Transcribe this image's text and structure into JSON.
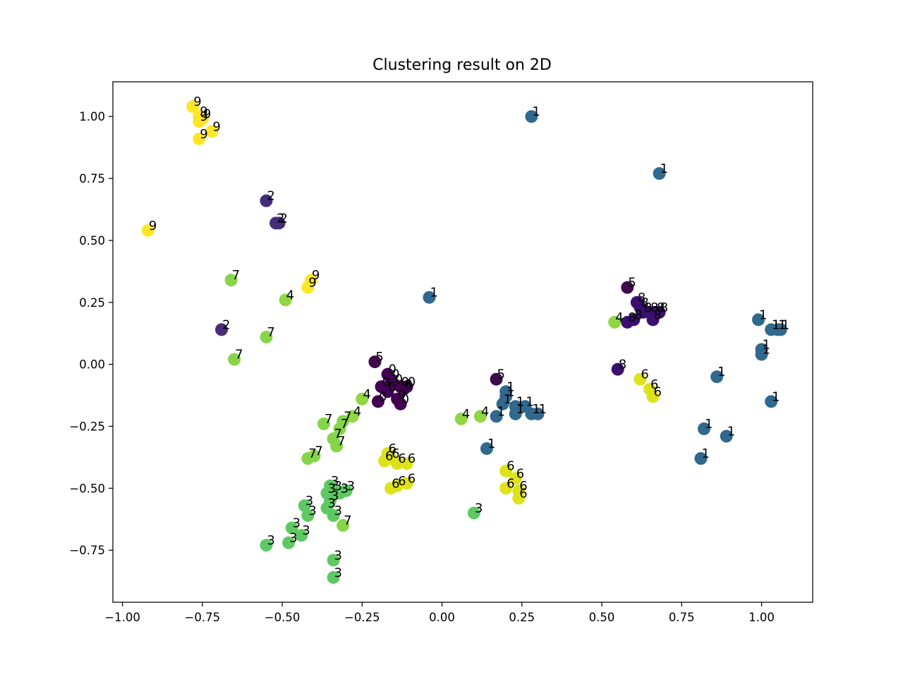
{
  "chart_data": {
    "type": "scatter",
    "title": "Clustering result on 2D",
    "xlabel": "",
    "ylabel": "",
    "xlim": [
      -1.03,
      1.16
    ],
    "ylim": [
      -0.96,
      1.14
    ],
    "grid": false,
    "legend": "none",
    "xticks": [
      {
        "value": -1.0,
        "label": "−1.00"
      },
      {
        "value": -0.75,
        "label": "−0.75"
      },
      {
        "value": -0.5,
        "label": "−0.50"
      },
      {
        "value": -0.25,
        "label": "−0.25"
      },
      {
        "value": 0.0,
        "label": "0.00"
      },
      {
        "value": 0.25,
        "label": "0.25"
      },
      {
        "value": 0.5,
        "label": "0.50"
      },
      {
        "value": 0.75,
        "label": "0.75"
      },
      {
        "value": 1.0,
        "label": "1.00"
      }
    ],
    "yticks": [
      {
        "value": 1.0,
        "label": "1.00"
      },
      {
        "value": 0.75,
        "label": "0.75"
      },
      {
        "value": 0.5,
        "label": "0.50"
      },
      {
        "value": 0.25,
        "label": "0.25"
      },
      {
        "value": 0.0,
        "label": "0.00"
      },
      {
        "value": -0.25,
        "label": "−0.25"
      },
      {
        "value": -0.5,
        "label": "−0.50"
      },
      {
        "value": -0.75,
        "label": "−0.75"
      }
    ],
    "cluster_colors": {
      "0": "#440154",
      "1": "#31688e",
      "2": "#472c7a",
      "3": "#5ec962",
      "4": "#90d743",
      "5": "#3e0b4d",
      "6": "#dde318",
      "7": "#86d549",
      "8": "#3b0f6f",
      "9": "#fde725"
    },
    "points": [
      {
        "x": -0.78,
        "y": 1.04,
        "label": "9"
      },
      {
        "x": -0.76,
        "y": 1.0,
        "label": "9"
      },
      {
        "x": -0.75,
        "y": 0.99,
        "label": "9"
      },
      {
        "x": -0.72,
        "y": 0.94,
        "label": "9"
      },
      {
        "x": -0.76,
        "y": 0.98,
        "label": "9"
      },
      {
        "x": -0.76,
        "y": 0.91,
        "label": "9"
      },
      {
        "x": -0.92,
        "y": 0.54,
        "label": "9"
      },
      {
        "x": -0.41,
        "y": 0.34,
        "label": "9"
      },
      {
        "x": -0.42,
        "y": 0.31,
        "label": "9"
      },
      {
        "x": 0.28,
        "y": 1.0,
        "label": "1"
      },
      {
        "x": 0.68,
        "y": 0.77,
        "label": "1"
      },
      {
        "x": -0.04,
        "y": 0.27,
        "label": "1"
      },
      {
        "x": -0.55,
        "y": 0.66,
        "label": "2"
      },
      {
        "x": -0.52,
        "y": 0.57,
        "label": "2"
      },
      {
        "x": -0.51,
        "y": 0.57,
        "label": "2"
      },
      {
        "x": -0.69,
        "y": 0.14,
        "label": "2"
      },
      {
        "x": -0.66,
        "y": 0.34,
        "label": "7"
      },
      {
        "x": -0.55,
        "y": 0.11,
        "label": "7"
      },
      {
        "x": -0.65,
        "y": 0.02,
        "label": "7"
      },
      {
        "x": -0.49,
        "y": 0.26,
        "label": "4"
      },
      {
        "x": 0.58,
        "y": 0.31,
        "label": "5"
      },
      {
        "x": 0.61,
        "y": 0.25,
        "label": "8"
      },
      {
        "x": 0.62,
        "y": 0.23,
        "label": "8"
      },
      {
        "x": 0.63,
        "y": 0.21,
        "label": "8"
      },
      {
        "x": 0.65,
        "y": 0.21,
        "label": "8"
      },
      {
        "x": 0.67,
        "y": 0.21,
        "label": "8"
      },
      {
        "x": 0.68,
        "y": 0.21,
        "label": "8"
      },
      {
        "x": 0.6,
        "y": 0.18,
        "label": "8"
      },
      {
        "x": 0.58,
        "y": 0.17,
        "label": "8"
      },
      {
        "x": 0.66,
        "y": 0.18,
        "label": "8"
      },
      {
        "x": 0.54,
        "y": 0.17,
        "label": "4"
      },
      {
        "x": 0.55,
        "y": -0.02,
        "label": "8"
      },
      {
        "x": 0.62,
        "y": -0.06,
        "label": "6"
      },
      {
        "x": 0.65,
        "y": -0.1,
        "label": "6"
      },
      {
        "x": 0.66,
        "y": -0.13,
        "label": "6"
      },
      {
        "x": 0.99,
        "y": 0.18,
        "label": "1"
      },
      {
        "x": 1.03,
        "y": 0.14,
        "label": "1"
      },
      {
        "x": 1.05,
        "y": 0.14,
        "label": "1"
      },
      {
        "x": 1.06,
        "y": 0.14,
        "label": "1"
      },
      {
        "x": 1.0,
        "y": 0.06,
        "label": "1"
      },
      {
        "x": 1.0,
        "y": 0.04,
        "label": "1"
      },
      {
        "x": 0.86,
        "y": -0.05,
        "label": "1"
      },
      {
        "x": 1.03,
        "y": -0.15,
        "label": "1"
      },
      {
        "x": 0.82,
        "y": -0.26,
        "label": "1"
      },
      {
        "x": 0.89,
        "y": -0.29,
        "label": "1"
      },
      {
        "x": 0.81,
        "y": -0.38,
        "label": "1"
      },
      {
        "x": -0.21,
        "y": 0.01,
        "label": "5"
      },
      {
        "x": -0.17,
        "y": -0.04,
        "label": "0"
      },
      {
        "x": -0.16,
        "y": -0.06,
        "label": "0"
      },
      {
        "x": -0.15,
        "y": -0.08,
        "label": "0"
      },
      {
        "x": -0.13,
        "y": -0.09,
        "label": "0"
      },
      {
        "x": -0.12,
        "y": -0.1,
        "label": "0"
      },
      {
        "x": -0.11,
        "y": -0.09,
        "label": "0"
      },
      {
        "x": -0.19,
        "y": -0.09,
        "label": "0"
      },
      {
        "x": -0.17,
        "y": -0.11,
        "label": "0"
      },
      {
        "x": -0.14,
        "y": -0.14,
        "label": "0"
      },
      {
        "x": -0.13,
        "y": -0.16,
        "label": "0"
      },
      {
        "x": -0.2,
        "y": -0.15,
        "label": "0"
      },
      {
        "x": -0.25,
        "y": -0.14,
        "label": "4"
      },
      {
        "x": -0.28,
        "y": -0.21,
        "label": "4"
      },
      {
        "x": 0.06,
        "y": -0.22,
        "label": "4"
      },
      {
        "x": 0.12,
        "y": -0.21,
        "label": "4"
      },
      {
        "x": 0.17,
        "y": -0.06,
        "label": "5"
      },
      {
        "x": 0.2,
        "y": -0.11,
        "label": "1"
      },
      {
        "x": 0.2,
        "y": -0.13,
        "label": "1"
      },
      {
        "x": 0.19,
        "y": -0.16,
        "label": "1"
      },
      {
        "x": 0.23,
        "y": -0.17,
        "label": "1"
      },
      {
        "x": 0.26,
        "y": -0.17,
        "label": "1"
      },
      {
        "x": 0.28,
        "y": -0.2,
        "label": "1"
      },
      {
        "x": 0.3,
        "y": -0.2,
        "label": "1"
      },
      {
        "x": 0.17,
        "y": -0.21,
        "label": "1"
      },
      {
        "x": 0.23,
        "y": -0.2,
        "label": "1"
      },
      {
        "x": 0.14,
        "y": -0.34,
        "label": "1"
      },
      {
        "x": -0.37,
        "y": -0.24,
        "label": "7"
      },
      {
        "x": -0.31,
        "y": -0.23,
        "label": "7"
      },
      {
        "x": -0.32,
        "y": -0.26,
        "label": "7"
      },
      {
        "x": -0.34,
        "y": -0.3,
        "label": "7"
      },
      {
        "x": -0.33,
        "y": -0.33,
        "label": "7"
      },
      {
        "x": -0.4,
        "y": -0.37,
        "label": "7"
      },
      {
        "x": -0.42,
        "y": -0.38,
        "label": "7"
      },
      {
        "x": -0.31,
        "y": -0.65,
        "label": "7"
      },
      {
        "x": -0.17,
        "y": -0.36,
        "label": "6"
      },
      {
        "x": -0.16,
        "y": -0.38,
        "label": "6"
      },
      {
        "x": -0.18,
        "y": -0.39,
        "label": "6"
      },
      {
        "x": -0.14,
        "y": -0.4,
        "label": "6"
      },
      {
        "x": -0.11,
        "y": -0.4,
        "label": "6"
      },
      {
        "x": -0.11,
        "y": -0.48,
        "label": "6"
      },
      {
        "x": -0.14,
        "y": -0.49,
        "label": "6"
      },
      {
        "x": -0.16,
        "y": -0.5,
        "label": "6"
      },
      {
        "x": 0.2,
        "y": -0.43,
        "label": "6"
      },
      {
        "x": 0.23,
        "y": -0.46,
        "label": "6"
      },
      {
        "x": 0.2,
        "y": -0.5,
        "label": "6"
      },
      {
        "x": 0.24,
        "y": -0.51,
        "label": "6"
      },
      {
        "x": 0.24,
        "y": -0.54,
        "label": "6"
      },
      {
        "x": 0.1,
        "y": -0.6,
        "label": "3"
      },
      {
        "x": -0.35,
        "y": -0.49,
        "label": "3"
      },
      {
        "x": -0.34,
        "y": -0.51,
        "label": "3"
      },
      {
        "x": -0.36,
        "y": -0.52,
        "label": "3"
      },
      {
        "x": -0.32,
        "y": -0.52,
        "label": "3"
      },
      {
        "x": -0.3,
        "y": -0.51,
        "label": "3"
      },
      {
        "x": -0.35,
        "y": -0.55,
        "label": "3"
      },
      {
        "x": -0.36,
        "y": -0.58,
        "label": "3"
      },
      {
        "x": -0.34,
        "y": -0.61,
        "label": "3"
      },
      {
        "x": -0.43,
        "y": -0.57,
        "label": "3"
      },
      {
        "x": -0.42,
        "y": -0.61,
        "label": "3"
      },
      {
        "x": -0.47,
        "y": -0.66,
        "label": "3"
      },
      {
        "x": -0.44,
        "y": -0.69,
        "label": "3"
      },
      {
        "x": -0.48,
        "y": -0.72,
        "label": "3"
      },
      {
        "x": -0.55,
        "y": -0.73,
        "label": "3"
      },
      {
        "x": -0.34,
        "y": -0.79,
        "label": "3"
      },
      {
        "x": -0.34,
        "y": -0.86,
        "label": "3"
      }
    ]
  }
}
